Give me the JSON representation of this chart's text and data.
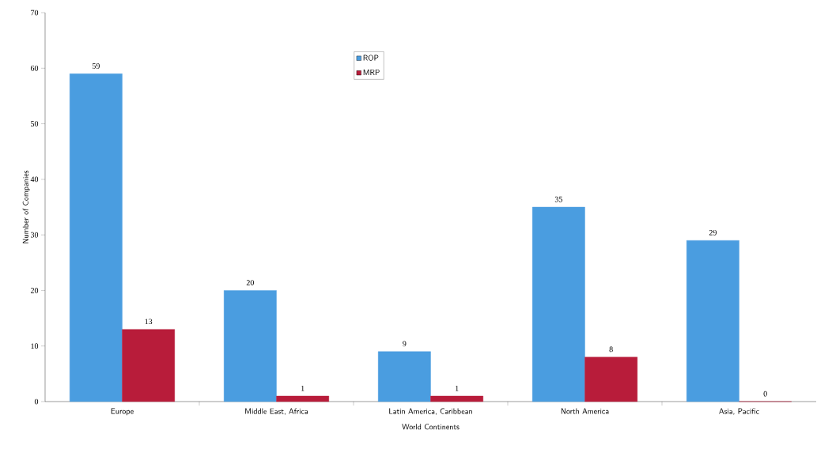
{
  "chart_data": {
    "type": "bar",
    "xlabel": "World Continents",
    "ylabel": "Number of Companies",
    "categories": [
      "Europe",
      "Middle East, Africa",
      "Latin America, Caribbean",
      "North America",
      "Asia, Pacific"
    ],
    "series": [
      {
        "name": "ROP",
        "color": "#4a9de0",
        "values": [
          59,
          20,
          9,
          35,
          29
        ]
      },
      {
        "name": "MRP",
        "color": "#b81c3a",
        "values": [
          13,
          1,
          1,
          8,
          0
        ]
      }
    ],
    "ylim": [
      0,
      70
    ],
    "yticks": [
      0,
      10,
      20,
      30,
      40,
      50,
      60,
      70
    ],
    "data_labels": true,
    "legend": "top",
    "grid": false
  }
}
